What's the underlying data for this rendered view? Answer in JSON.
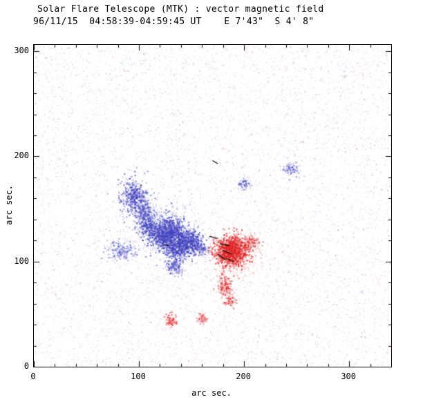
{
  "chart_data": {
    "type": "scatter",
    "title": "Solar Flare Telescope (MTK) : vector magnetic field",
    "subtitle": "96/11/15  04:58:39-04:59:45 UT    E 7'43\"  S 4' 8\"",
    "xlabel": "arc sec.",
    "ylabel": "arc sec.",
    "xlim": [
      0,
      340
    ],
    "ylim": [
      0,
      306
    ],
    "xticks": [
      0,
      100,
      200,
      300
    ],
    "yticks": [
      0,
      100,
      200,
      300
    ],
    "minor_tick_interval": 20,
    "grid": false,
    "legend": "none",
    "colors": {
      "noise_negative": "#6666cc",
      "noise_positive": "#e06868",
      "region_negative": "#4343c0",
      "region_positive": "#e02424",
      "vector": "#000000",
      "axis": "#000000",
      "background": "#ffffff"
    },
    "noise": {
      "count": 11000,
      "seed": 1996,
      "alpha": [
        0.07,
        0.42
      ]
    },
    "regions": [
      {
        "polarity": "negative",
        "x": 95,
        "y": 163,
        "sx": 6,
        "sy": 8,
        "points": 550,
        "alpha": [
          0.25,
          0.85
        ]
      },
      {
        "polarity": "negative",
        "x": 104,
        "y": 148,
        "sx": 5,
        "sy": 6,
        "points": 300,
        "alpha": [
          0.2,
          0.75
        ]
      },
      {
        "polarity": "negative",
        "x": 107,
        "y": 135,
        "sx": 4,
        "sy": 6,
        "points": 250,
        "alpha": [
          0.2,
          0.75
        ]
      },
      {
        "polarity": "negative",
        "x": 126,
        "y": 127,
        "sx": 9,
        "sy": 8,
        "points": 1400,
        "alpha": [
          0.3,
          0.9
        ]
      },
      {
        "polarity": "negative",
        "x": 147,
        "y": 119,
        "sx": 7,
        "sy": 6,
        "points": 700,
        "alpha": [
          0.3,
          0.9
        ]
      },
      {
        "polarity": "negative",
        "x": 135,
        "y": 112,
        "sx": 6,
        "sy": 5,
        "points": 400,
        "alpha": [
          0.25,
          0.8
        ]
      },
      {
        "polarity": "negative",
        "x": 82,
        "y": 111,
        "sx": 8,
        "sy": 5,
        "points": 260,
        "alpha": [
          0.15,
          0.6
        ]
      },
      {
        "polarity": "negative",
        "x": 133,
        "y": 96,
        "sx": 4,
        "sy": 4,
        "points": 200,
        "alpha": [
          0.2,
          0.7
        ]
      },
      {
        "polarity": "negative",
        "x": 160,
        "y": 112,
        "sx": 3,
        "sy": 3,
        "points": 90,
        "alpha": [
          0.15,
          0.6
        ]
      },
      {
        "polarity": "negative",
        "x": 200,
        "y": 174,
        "sx": 3,
        "sy": 2.5,
        "points": 90,
        "alpha": [
          0.2,
          0.7
        ]
      },
      {
        "polarity": "negative",
        "x": 244,
        "y": 189,
        "sx": 4,
        "sy": 3,
        "points": 110,
        "alpha": [
          0.2,
          0.7
        ]
      },
      {
        "polarity": "negative",
        "x": 120,
        "y": 133,
        "sx": 18,
        "sy": 14,
        "points": 500,
        "alpha": [
          0.08,
          0.28
        ]
      },
      {
        "polarity": "positive",
        "x": 188,
        "y": 111,
        "sx": 8,
        "sy": 7,
        "points": 1300,
        "alpha": [
          0.3,
          0.95
        ]
      },
      {
        "polarity": "positive",
        "x": 192,
        "y": 105,
        "sx": 12,
        "sy": 10,
        "points": 500,
        "alpha": [
          0.1,
          0.32
        ]
      },
      {
        "polarity": "positive",
        "x": 181,
        "y": 77,
        "sx": 4,
        "sy": 6,
        "points": 220,
        "alpha": [
          0.2,
          0.7
        ]
      },
      {
        "polarity": "positive",
        "x": 186,
        "y": 63,
        "sx": 3,
        "sy": 3,
        "points": 90,
        "alpha": [
          0.2,
          0.65
        ]
      },
      {
        "polarity": "positive",
        "x": 130,
        "y": 44,
        "sx": 3,
        "sy": 3,
        "points": 110,
        "alpha": [
          0.2,
          0.7
        ]
      },
      {
        "polarity": "positive",
        "x": 160,
        "y": 47,
        "sx": 2.5,
        "sy": 2.5,
        "points": 70,
        "alpha": [
          0.15,
          0.6
        ]
      },
      {
        "polarity": "positive",
        "x": 206,
        "y": 119,
        "sx": 4,
        "sy": 4,
        "points": 150,
        "alpha": [
          0.2,
          0.65
        ]
      }
    ],
    "vectors": [
      {
        "x1": 167,
        "y1": 124,
        "x2": 175,
        "y2": 122
      },
      {
        "x1": 177,
        "y1": 117,
        "x2": 186,
        "y2": 115
      },
      {
        "x1": 179,
        "y1": 111,
        "x2": 188,
        "y2": 107
      },
      {
        "x1": 175,
        "y1": 107,
        "x2": 182,
        "y2": 102
      },
      {
        "x1": 183,
        "y1": 103,
        "x2": 190,
        "y2": 100
      },
      {
        "x1": 124,
        "y1": 116,
        "x2": 129,
        "y2": 115
      },
      {
        "x1": 170,
        "y1": 196,
        "x2": 175,
        "y2": 193
      }
    ]
  }
}
